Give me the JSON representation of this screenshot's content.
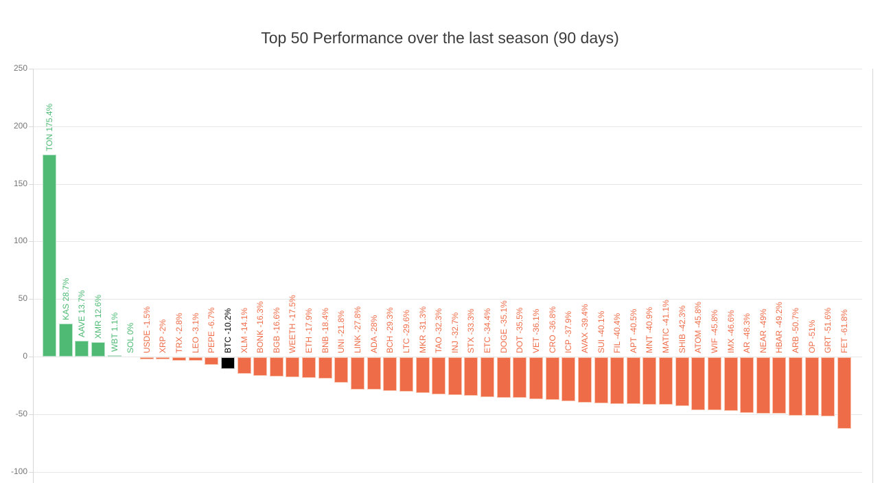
{
  "title": "Top 50 Performance over the last season (90 days)",
  "chart_data": {
    "type": "bar",
    "title": "Top 50 Performance over the last season (90 days)",
    "xlabel": "",
    "ylabel": "",
    "ylim": [
      -100,
      250
    ],
    "yticks": [
      250,
      200,
      150,
      100,
      50,
      0,
      -50,
      -100
    ],
    "grid": true,
    "legend": false,
    "label_format": "{symbol} {value}%",
    "highlight_symbol": "BTC",
    "colors": {
      "positive": "#4eba74",
      "positive_border": "#b8e2c9",
      "negative": "#ef6c49",
      "negative_border": "#f9c5b1",
      "highlight": "#000000",
      "highlight_border": "#c6c6c6",
      "gridline": "#e6e6e6",
      "axis": "#d6d6d6",
      "tick_text": "#757575",
      "title_text": "#3c3c3c"
    },
    "series": [
      {
        "symbol": "TON",
        "value": 175.4
      },
      {
        "symbol": "KAS",
        "value": 28.7
      },
      {
        "symbol": "AAVE",
        "value": 13.7
      },
      {
        "symbol": "XMR",
        "value": 12.6
      },
      {
        "symbol": "WBT",
        "value": 1.1
      },
      {
        "symbol": "SOL",
        "value": 0
      },
      {
        "symbol": "USDE",
        "value": -1.5
      },
      {
        "symbol": "XRP",
        "value": -2
      },
      {
        "symbol": "TRX",
        "value": -2.8
      },
      {
        "symbol": "LEO",
        "value": -3.1
      },
      {
        "symbol": "PEPE",
        "value": -6.7
      },
      {
        "symbol": "BTC",
        "value": -10.2
      },
      {
        "symbol": "XLM",
        "value": -14.1
      },
      {
        "symbol": "BONK",
        "value": -16.3
      },
      {
        "symbol": "BGB",
        "value": -16.6
      },
      {
        "symbol": "WEETH",
        "value": -17.5
      },
      {
        "symbol": "ETH",
        "value": -17.9
      },
      {
        "symbol": "BNB",
        "value": -18.4
      },
      {
        "symbol": "UNI",
        "value": -21.8
      },
      {
        "symbol": "LINK",
        "value": -27.8
      },
      {
        "symbol": "ADA",
        "value": -28
      },
      {
        "symbol": "BCH",
        "value": -29.3
      },
      {
        "symbol": "LTC",
        "value": -29.6
      },
      {
        "symbol": "MKR",
        "value": -31.3
      },
      {
        "symbol": "TAO",
        "value": -32.3
      },
      {
        "symbol": "INJ",
        "value": -32.7
      },
      {
        "symbol": "STX",
        "value": -33.3
      },
      {
        "symbol": "ETC",
        "value": -34.4
      },
      {
        "symbol": "DOGE",
        "value": -35.1
      },
      {
        "symbol": "DOT",
        "value": -35.5
      },
      {
        "symbol": "VET",
        "value": -36.1
      },
      {
        "symbol": "CRO",
        "value": -36.8
      },
      {
        "symbol": "ICP",
        "value": -37.9
      },
      {
        "symbol": "AVAX",
        "value": -39.4
      },
      {
        "symbol": "SUI",
        "value": -40.1
      },
      {
        "symbol": "FIL",
        "value": -40.4
      },
      {
        "symbol": "APT",
        "value": -40.5
      },
      {
        "symbol": "MNT",
        "value": -40.9
      },
      {
        "symbol": "MATIC",
        "value": -41.1
      },
      {
        "symbol": "SHIB",
        "value": -42.3
      },
      {
        "symbol": "ATOM",
        "value": -45.8
      },
      {
        "symbol": "WIF",
        "value": -45.8
      },
      {
        "symbol": "IMX",
        "value": -46.6
      },
      {
        "symbol": "AR",
        "value": -48.3
      },
      {
        "symbol": "NEAR",
        "value": -49
      },
      {
        "symbol": "HBAR",
        "value": -49.2
      },
      {
        "symbol": "ARB",
        "value": -50.7
      },
      {
        "symbol": "OP",
        "value": -51
      },
      {
        "symbol": "GRT",
        "value": -51.6
      },
      {
        "symbol": "FET",
        "value": -61.8
      }
    ]
  }
}
